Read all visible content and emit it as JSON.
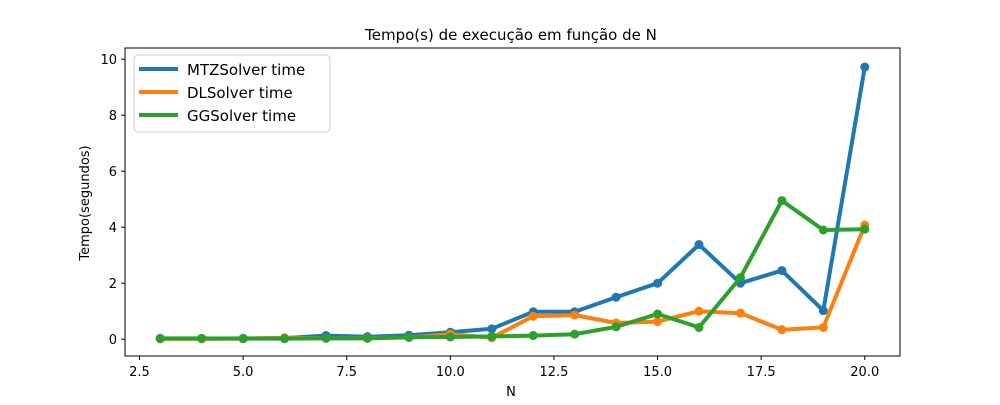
{
  "chart_data": {
    "type": "line",
    "title": "Tempo(s) de execução em função de N",
    "xlabel": "N",
    "ylabel": "Tempo(segundos)",
    "xlim": [
      2.15,
      20.85
    ],
    "ylim": [
      -0.6,
      10.4
    ],
    "xticks": [
      2.5,
      5.0,
      7.5,
      10.0,
      12.5,
      15.0,
      17.5,
      20.0
    ],
    "xtick_labels": [
      "2.5",
      "5.0",
      "7.5",
      "10.0",
      "12.5",
      "15.0",
      "17.5",
      "20.0"
    ],
    "yticks": [
      0,
      2,
      4,
      6,
      8,
      10
    ],
    "ytick_labels": [
      "0",
      "2",
      "4",
      "6",
      "8",
      "10"
    ],
    "grid": false,
    "legend_position": "top-left",
    "x": [
      3,
      4,
      5,
      6,
      7,
      8,
      9,
      10,
      11,
      12,
      13,
      14,
      15,
      16,
      17,
      18,
      19,
      20
    ],
    "series": [
      {
        "name": "MTZSolver time",
        "color": "#1f77b4",
        "values": [
          0.02,
          0.02,
          0.03,
          0.04,
          0.13,
          0.09,
          0.14,
          0.25,
          0.37,
          0.98,
          0.98,
          1.5,
          2.0,
          3.38,
          2.0,
          2.45,
          1.02,
          9.72
        ]
      },
      {
        "name": "DLSolver time",
        "color": "#ff7f0e",
        "values": [
          0.01,
          0.01,
          0.02,
          0.05,
          0.03,
          0.04,
          0.06,
          0.18,
          0.05,
          0.82,
          0.86,
          0.58,
          0.63,
          1.0,
          0.93,
          0.34,
          0.42,
          4.07
        ]
      },
      {
        "name": "GGSolver time",
        "color": "#2ca02c",
        "values": [
          0.03,
          0.03,
          0.02,
          0.02,
          0.03,
          0.03,
          0.07,
          0.08,
          0.1,
          0.13,
          0.18,
          0.44,
          0.9,
          0.42,
          2.2,
          4.95,
          3.9,
          3.93
        ]
      }
    ]
  }
}
